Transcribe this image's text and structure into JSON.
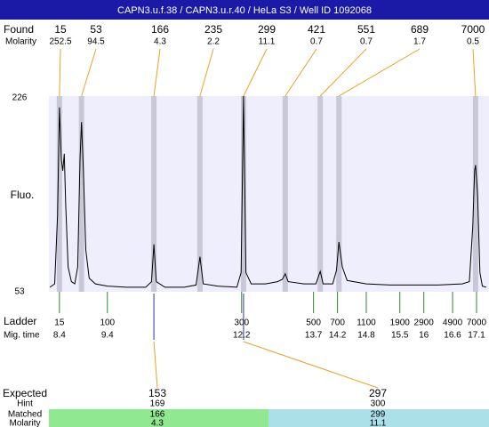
{
  "header": {
    "title": "CAPN3.u.f.38 / CAPN3.u.r.40 / HeLa S3 / Well ID 1092068"
  },
  "chart_data": {
    "type": "line",
    "y_label": "Fluo.",
    "ylim": [
      53,
      226
    ],
    "yticks": [
      53,
      226
    ],
    "xlim": [
      8.18,
      17.36
    ],
    "trace": {
      "color": "#000000",
      "x": [
        8.2,
        8.3,
        8.36,
        8.4,
        8.44,
        8.47,
        8.5,
        8.53,
        8.58,
        8.65,
        8.72,
        8.78,
        8.83,
        8.86,
        8.9,
        8.95,
        9.02,
        9.15,
        9.4,
        9.8,
        10.2,
        10.32,
        10.37,
        10.42,
        10.6,
        11.0,
        11.25,
        11.33,
        11.4,
        11.7,
        12.1,
        12.19,
        12.24,
        12.29,
        12.4,
        12.7,
        12.95,
        13.05,
        13.11,
        13.17,
        13.5,
        13.75,
        13.84,
        13.9,
        14.1,
        14.18,
        14.23,
        14.3,
        14.4,
        14.8,
        15.3,
        15.8,
        16.3,
        16.8,
        16.95,
        17.02,
        17.06,
        17.08,
        17.12,
        17.17,
        17.22,
        17.3
      ],
      "values": [
        57,
        60,
        120,
        216,
        170,
        160,
        175,
        130,
        75,
        62,
        60,
        75,
        170,
        203,
        160,
        90,
        65,
        60,
        58,
        57,
        57,
        62,
        95,
        62,
        57,
        57,
        59,
        84,
        60,
        58,
        57,
        70,
        226,
        70,
        60,
        60,
        62,
        64,
        69,
        62,
        60,
        60,
        71,
        60,
        60,
        72,
        97,
        75,
        63,
        60,
        59,
        59,
        59,
        60,
        62,
        110,
        160,
        165,
        140,
        70,
        58,
        57
      ]
    },
    "found": {
      "label": "Found",
      "molarity_label": "Molarity",
      "sizes": [
        15,
        53,
        166,
        235,
        299,
        421,
        551,
        689,
        7000
      ],
      "molarity": [
        252.5,
        94.5,
        4.3,
        2.2,
        11.1,
        0.7,
        0.7,
        1.7,
        0.5
      ],
      "time": [
        8.4,
        8.86,
        10.37,
        11.33,
        12.24,
        13.11,
        13.84,
        14.23,
        17.08
      ]
    },
    "ladder": {
      "label": "Ladder",
      "time_label": "Mig. time",
      "sizes": [
        15,
        100,
        300,
        500,
        700,
        1100,
        1900,
        2900,
        4900,
        7000
      ],
      "time": [
        8.4,
        9.4,
        12.2,
        13.7,
        14.2,
        14.8,
        15.5,
        16,
        16.6,
        17.1
      ]
    }
  },
  "expected": {
    "label": "Expected",
    "hint_label": "Hint",
    "matched_label": "Matched",
    "molarity_label": "Molarity",
    "rows": [
      {
        "expected": 153,
        "hint": 169,
        "matched": 166,
        "molarity": 4.3
      },
      {
        "expected": 297,
        "hint": 300,
        "matched": 299,
        "molarity": 11.1
      }
    ]
  }
}
